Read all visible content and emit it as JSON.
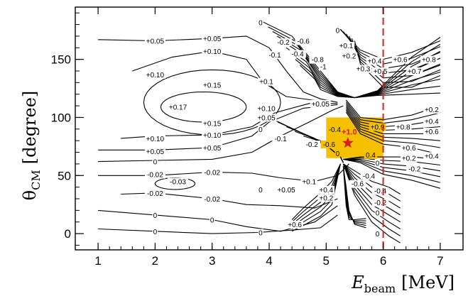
{
  "chart_data": {
    "type": "contour",
    "xlabel_main": "E",
    "xlabel_sub": "beam",
    "xlabel_unit": "[MeV]",
    "ylabel_main": "θ",
    "ylabel_sub": "CM",
    "ylabel_unit": "[degree]",
    "xlim": [
      0.6,
      7.4
    ],
    "ylim": [
      -14,
      195
    ],
    "xticks": [
      1,
      2,
      3,
      4,
      5,
      6,
      7
    ],
    "yticks": [
      0,
      50,
      100,
      150
    ],
    "highlight_region": {
      "x": [
        5.0,
        6.0
      ],
      "y": [
        65,
        100
      ],
      "color": "#f5c000"
    },
    "vline": {
      "x": 6.0,
      "color": "#d62020",
      "style": "dashed"
    },
    "star": {
      "x": 5.38,
      "y": 78,
      "label": "+1.0",
      "color": "#d62020"
    },
    "contour_labels": [
      {
        "text": "+0.05",
        "x": 2.0,
        "y": 166
      },
      {
        "text": "+0.05",
        "x": 3.0,
        "y": 168
      },
      {
        "text": "+0.10",
        "x": 3.0,
        "y": 157
      },
      {
        "text": "+0.10",
        "x": 2.0,
        "y": 137
      },
      {
        "text": "+0.15",
        "x": 3.0,
        "y": 128
      },
      {
        "text": "+0.17",
        "x": 2.4,
        "y": 109
      },
      {
        "text": "+0.1",
        "x": 3.95,
        "y": 131
      },
      {
        "text": "+0.15",
        "x": 3.0,
        "y": 95
      },
      {
        "text": "+0.10",
        "x": 3.0,
        "y": 85
      },
      {
        "text": "+0.10",
        "x": 2.0,
        "y": 82
      },
      {
        "text": "+0.05",
        "x": 3.0,
        "y": 74
      },
      {
        "text": "+0.05",
        "x": 2.0,
        "y": 71
      },
      {
        "text": "+0.10",
        "x": 3.95,
        "y": 108
      },
      {
        "text": "+0.05",
        "x": 3.95,
        "y": 100
      },
      {
        "text": "+0.05",
        "x": 4.9,
        "y": 112
      },
      {
        "text": "0",
        "x": 3.85,
        "y": 90
      },
      {
        "text": "-0.1",
        "x": 4.2,
        "y": 82
      },
      {
        "text": "-0.2",
        "x": 4.75,
        "y": 77
      },
      {
        "text": "-0.6",
        "x": 5.05,
        "y": 77
      },
      {
        "text": "-0.4",
        "x": 5.15,
        "y": 90
      },
      {
        "text": "0",
        "x": 5.2,
        "y": 69
      },
      {
        "text": "+0.9",
        "x": 5.9,
        "y": 92
      },
      {
        "text": "+0.8",
        "x": 6.35,
        "y": 92
      },
      {
        "text": "+0.6",
        "x": 6.85,
        "y": 88
      },
      {
        "text": "+0.6",
        "x": 6.45,
        "y": 74
      },
      {
        "text": "+0.4",
        "x": 6.85,
        "y": 67
      },
      {
        "text": "+0.2",
        "x": 6.45,
        "y": 65
      },
      {
        "text": "0.4",
        "x": 5.78,
        "y": 68
      },
      {
        "text": "0",
        "x": 5.9,
        "y": 61
      },
      {
        "text": "-0.2",
        "x": 6.55,
        "y": 56
      },
      {
        "text": "+0.2",
        "x": 6.85,
        "y": 107
      },
      {
        "text": "+0.4",
        "x": 6.85,
        "y": 97
      },
      {
        "text": "-0.02",
        "x": 2.0,
        "y": 51
      },
      {
        "text": "-0.02",
        "x": 3.0,
        "y": 53
      },
      {
        "text": "-0.03",
        "x": 2.4,
        "y": 45
      },
      {
        "text": "-0.02",
        "x": 2.0,
        "y": 35
      },
      {
        "text": "-0.02",
        "x": 3.0,
        "y": 30
      },
      {
        "text": "0",
        "x": 2.0,
        "y": 62
      },
      {
        "text": "0",
        "x": 2.0,
        "y": 16
      },
      {
        "text": "0",
        "x": 3.0,
        "y": 12
      },
      {
        "text": "0",
        "x": 2.0,
        "y": 2
      },
      {
        "text": "0",
        "x": 3.85,
        "y": 1
      },
      {
        "text": "0",
        "x": 3.85,
        "y": 38
      },
      {
        "text": "+0.05",
        "x": 4.3,
        "y": 38
      },
      {
        "text": "+0.1",
        "x": 4.7,
        "y": 45
      },
      {
        "text": "+0.4",
        "x": 5.0,
        "y": 38
      },
      {
        "text": "+0.2",
        "x": 5.0,
        "y": 31
      },
      {
        "text": "-0.4",
        "x": 5.75,
        "y": 50
      },
      {
        "text": "-0.6",
        "x": 5.55,
        "y": 43
      },
      {
        "text": "-0.4",
        "x": 5.95,
        "y": 37
      },
      {
        "text": "-0.2",
        "x": 5.95,
        "y": 27
      },
      {
        "text": "0",
        "x": 5.9,
        "y": 18
      },
      {
        "text": "0",
        "x": 5.9,
        "y": 0
      },
      {
        "text": "+0.6",
        "x": 4.45,
        "y": 8
      },
      {
        "text": "0",
        "x": 3.85,
        "y": 182
      },
      {
        "text": "0",
        "x": 5.2,
        "y": 175
      },
      {
        "text": "-0.2",
        "x": 4.25,
        "y": 165
      },
      {
        "text": "-0.1",
        "x": 4.1,
        "y": 154
      },
      {
        "text": "-0.6",
        "x": 4.6,
        "y": 166
      },
      {
        "text": "-0.4",
        "x": 4.5,
        "y": 155
      },
      {
        "text": "-0.8",
        "x": 4.85,
        "y": 150
      },
      {
        "text": "-1",
        "x": 4.95,
        "y": 144
      },
      {
        "text": "+0.1",
        "x": 5.35,
        "y": 162
      },
      {
        "text": "+0.2",
        "x": 5.4,
        "y": 153
      },
      {
        "text": "+0.4",
        "x": 5.85,
        "y": 149
      },
      {
        "text": "+0.3",
        "x": 5.65,
        "y": 142
      },
      {
        "text": "+0.5",
        "x": 5.95,
        "y": 140
      },
      {
        "text": "+0.6",
        "x": 6.3,
        "y": 150
      },
      {
        "text": "+0.7",
        "x": 6.55,
        "y": 140
      },
      {
        "text": "+0.8",
        "x": 6.8,
        "y": 150
      }
    ]
  }
}
